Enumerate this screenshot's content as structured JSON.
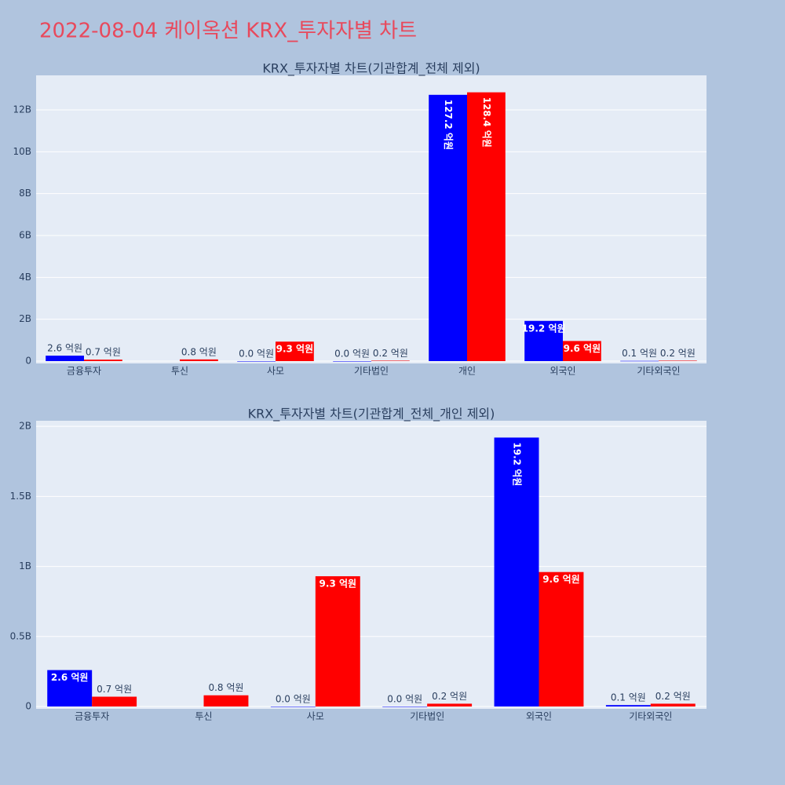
{
  "title": "2022-08-04 케이옥션 KRX_투자자별 차트",
  "chart_data": [
    {
      "type": "bar",
      "title": "KRX_투자자별 차트(기관합계_전체 제외)",
      "categories": [
        "금융투자",
        "투신",
        "사모",
        "기타법인",
        "개인",
        "외국인",
        "기타외국인"
      ],
      "series": [
        {
          "color": "#0000ff",
          "values": [
            260000000,
            null,
            0,
            0,
            12720000000,
            1920000000,
            10000000
          ],
          "value_labels": [
            "2.6 억원",
            null,
            "0.0 억원",
            "0.0 억원",
            "127.2 억원",
            "19.2 억원",
            "0.1 억원"
          ]
        },
        {
          "color": "#ff0000",
          "values": [
            70000000,
            80000000,
            930000000,
            20000000,
            12840000000,
            960000000,
            20000000
          ],
          "value_labels": [
            "0.7 억원",
            "0.8 억원",
            "9.3 억원",
            "0.2 억원",
            "128.4 억원",
            "9.6 억원",
            "0.2 억원"
          ]
        }
      ],
      "ylim": [
        0,
        13650000000
      ],
      "yticks": [
        0,
        {
          "value": 2000000000,
          "label": "2B"
        },
        {
          "value": 4000000000,
          "label": "4B"
        },
        {
          "value": 6000000000,
          "label": "6B"
        },
        {
          "value": 8000000000,
          "label": "8B"
        },
        {
          "value": 10000000000,
          "label": "10B"
        },
        {
          "value": 12000000000,
          "label": "12B"
        }
      ],
      "grid": true
    },
    {
      "type": "bar",
      "title": "KRX_투자자별 차트(기관합계_전체_개인 제외)",
      "categories": [
        "금융투자",
        "투신",
        "사모",
        "기타법인",
        "외국인",
        "기타외국인"
      ],
      "series": [
        {
          "color": "#0000ff",
          "values": [
            260000000,
            null,
            0,
            0,
            1920000000,
            10000000
          ],
          "value_labels": [
            "2.6 억원",
            null,
            "0.0 억원",
            "0.0 억원",
            "19.2 억원",
            "0.1 억원"
          ]
        },
        {
          "color": "#ff0000",
          "values": [
            70000000,
            80000000,
            930000000,
            20000000,
            960000000,
            20000000
          ],
          "value_labels": [
            "0.7 억원",
            "0.8 억원",
            "9.3 억원",
            "0.2 억원",
            "9.6 억원",
            "0.2 억원"
          ]
        }
      ],
      "ylim": [
        0,
        2040000000
      ],
      "yticks": [
        0,
        {
          "value": 500000000,
          "label": "0.5B"
        },
        {
          "value": 1000000000,
          "label": "1B"
        },
        {
          "value": 1500000000,
          "label": "1.5B"
        },
        {
          "value": 2000000000,
          "label": "2B"
        }
      ],
      "grid": true
    }
  ]
}
